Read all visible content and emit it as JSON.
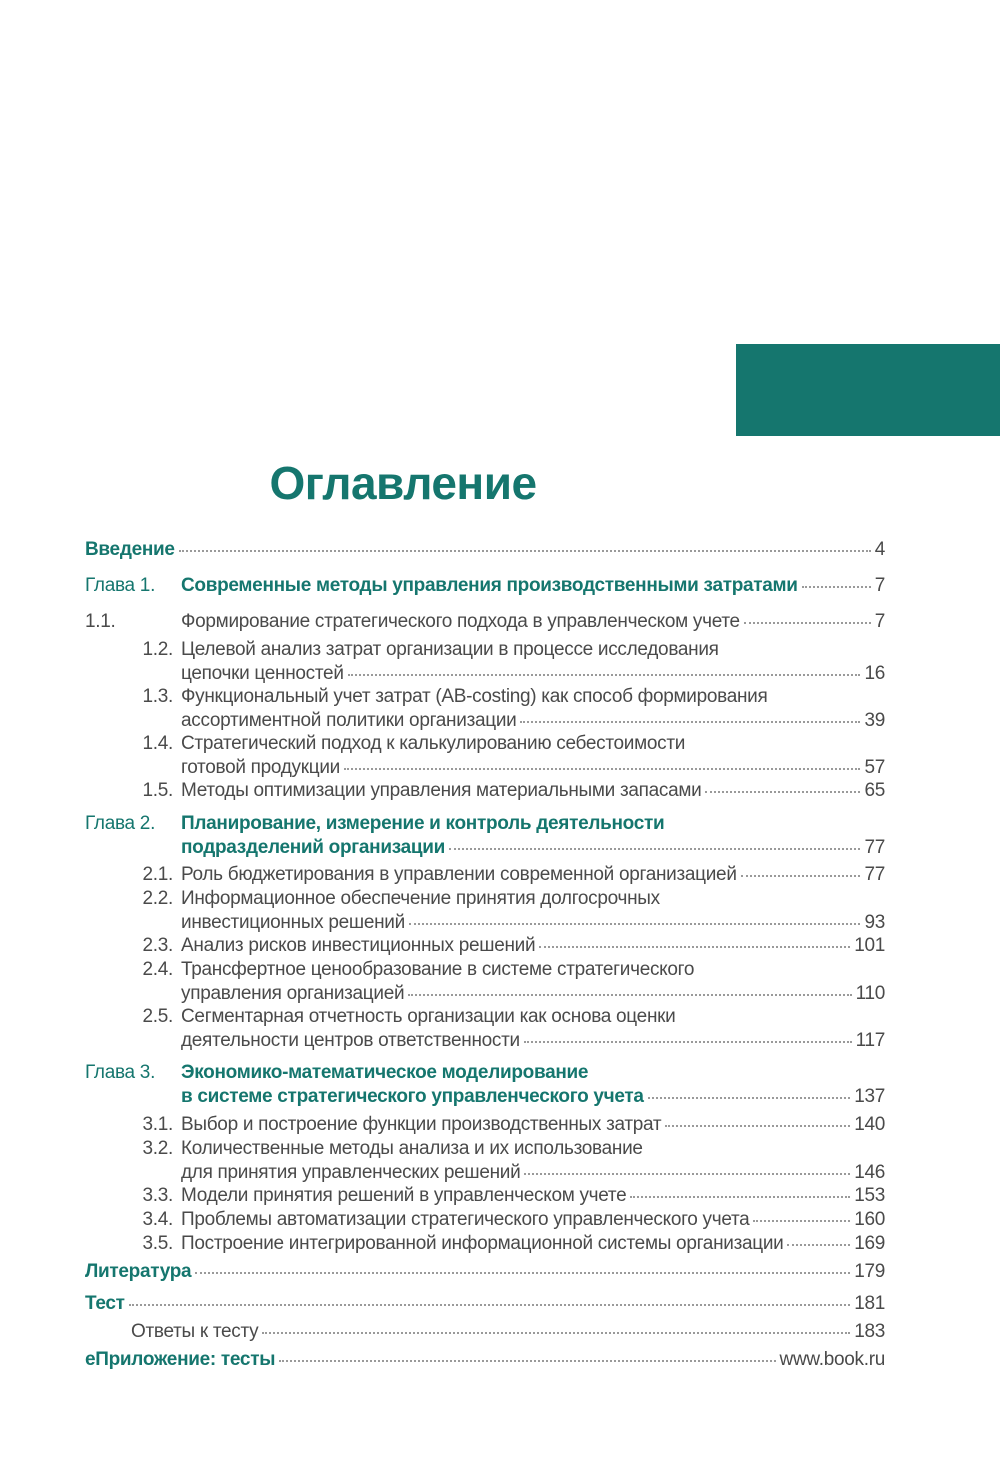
{
  "colors": {
    "accent": "#15766e",
    "text": "#4a4a4a"
  },
  "heading": "Оглавление",
  "entries": [
    {
      "type": "top",
      "lines": [
        "Введение"
      ],
      "page": "4"
    },
    {
      "type": "chapter",
      "num": "Глава 1.",
      "lines": [
        "Современные методы управления производственными затратами"
      ],
      "page": "7"
    },
    {
      "type": "section",
      "num": "1.1.",
      "lines": [
        "Формирование стратегического подхода в управленческом учете"
      ],
      "page": "7"
    },
    {
      "type": "section",
      "num": "1.2.",
      "lines": [
        "Целевой анализ затрат организации в процессе исследования",
        "цепочки ценностей"
      ],
      "page": "16"
    },
    {
      "type": "section",
      "num": "1.3.",
      "lines": [
        "Функциональный учет затрат (AB-costing) как способ формирования",
        "ассортиментной политики организации"
      ],
      "page": "39"
    },
    {
      "type": "section",
      "num": "1.4.",
      "lines": [
        "Стратегический подход к калькулированию себестоимости",
        "готовой продукции"
      ],
      "page": "57"
    },
    {
      "type": "section",
      "num": "1.5.",
      "lines": [
        "Методы оптимизации управления материальными запасами"
      ],
      "page": "65"
    },
    {
      "type": "chapter",
      "num": "Глава 2.",
      "lines": [
        "Планирование, измерение и контроль деятельности",
        "подразделений организации"
      ],
      "page": "77"
    },
    {
      "type": "section",
      "num": "2.1.",
      "lines": [
        "Роль бюджетирования в управлении современной организацией"
      ],
      "page": "77"
    },
    {
      "type": "section",
      "num": "2.2.",
      "lines": [
        "Информационное обеспечение принятия долгосрочных",
        "инвестиционных решений"
      ],
      "page": "93"
    },
    {
      "type": "section",
      "num": "2.3.",
      "lines": [
        "Анализ рисков инвестиционных решений"
      ],
      "page": "101"
    },
    {
      "type": "section",
      "num": "2.4.",
      "lines": [
        "Трансфертное ценообразование в системе стратегического",
        "управления организацией"
      ],
      "page": "110"
    },
    {
      "type": "section",
      "num": "2.5.",
      "lines": [
        "Сегментарная отчетность организации как основа оценки",
        "деятельности центров ответственности"
      ],
      "page": "117"
    },
    {
      "type": "chapter",
      "num": "Глава 3.",
      "lines": [
        "Экономико-математическое моделирование",
        "в системе стратегического управленческого учета"
      ],
      "page": "137"
    },
    {
      "type": "section",
      "num": "3.1.",
      "lines": [
        "Выбор и построение функции производственных затрат"
      ],
      "page": "140"
    },
    {
      "type": "section",
      "num": "3.2.",
      "lines": [
        "Количественные методы анализа и их использование",
        "для принятия управленческих решений"
      ],
      "page": "146"
    },
    {
      "type": "section",
      "num": "3.3.",
      "lines": [
        "Модели принятия решений в управленческом учете"
      ],
      "page": "153"
    },
    {
      "type": "section",
      "num": "3.4.",
      "lines": [
        "Проблемы автоматизации стратегического управленческого учета"
      ],
      "page": "160"
    },
    {
      "type": "section",
      "num": "3.5.",
      "lines": [
        "Построение интегрированной информационной системы организации"
      ],
      "page": "169"
    },
    {
      "type": "top",
      "lines": [
        "Литература"
      ],
      "page": "179"
    },
    {
      "type": "top",
      "lines": [
        "Тест"
      ],
      "page": "181"
    },
    {
      "type": "sub",
      "lines": [
        "Ответы к тесту"
      ],
      "page": "183"
    },
    {
      "type": "top",
      "lines": [
        "еПриложение: тесты"
      ],
      "page": "www.book.ru"
    }
  ]
}
